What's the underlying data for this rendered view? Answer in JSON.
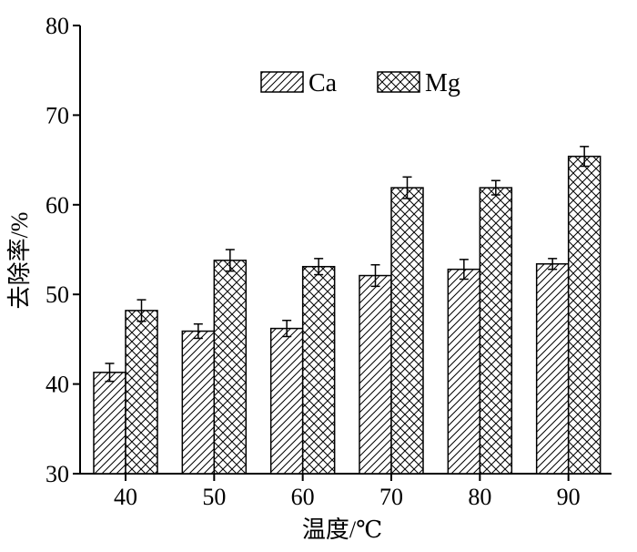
{
  "chart_data": {
    "type": "bar",
    "categories": [
      "40",
      "50",
      "60",
      "70",
      "80",
      "90"
    ],
    "series": [
      {
        "name": "Ca",
        "values": [
          41.3,
          45.9,
          46.2,
          52.1,
          52.8,
          53.4
        ],
        "errors": [
          1.0,
          0.8,
          0.9,
          1.2,
          1.1,
          0.6
        ],
        "pattern": "hatch"
      },
      {
        "name": "Mg",
        "values": [
          48.2,
          53.8,
          53.1,
          61.9,
          61.9,
          65.4
        ],
        "errors": [
          1.2,
          1.2,
          0.9,
          1.2,
          0.8,
          1.1
        ],
        "pattern": "crosshatch"
      }
    ],
    "xlabel": "温度/℃",
    "ylabel": "去除率/%",
    "ylim": [
      30,
      80
    ],
    "yticks": [
      "30",
      "40",
      "50",
      "60",
      "70",
      "80"
    ],
    "grid": false,
    "legend_position": "top-center"
  }
}
